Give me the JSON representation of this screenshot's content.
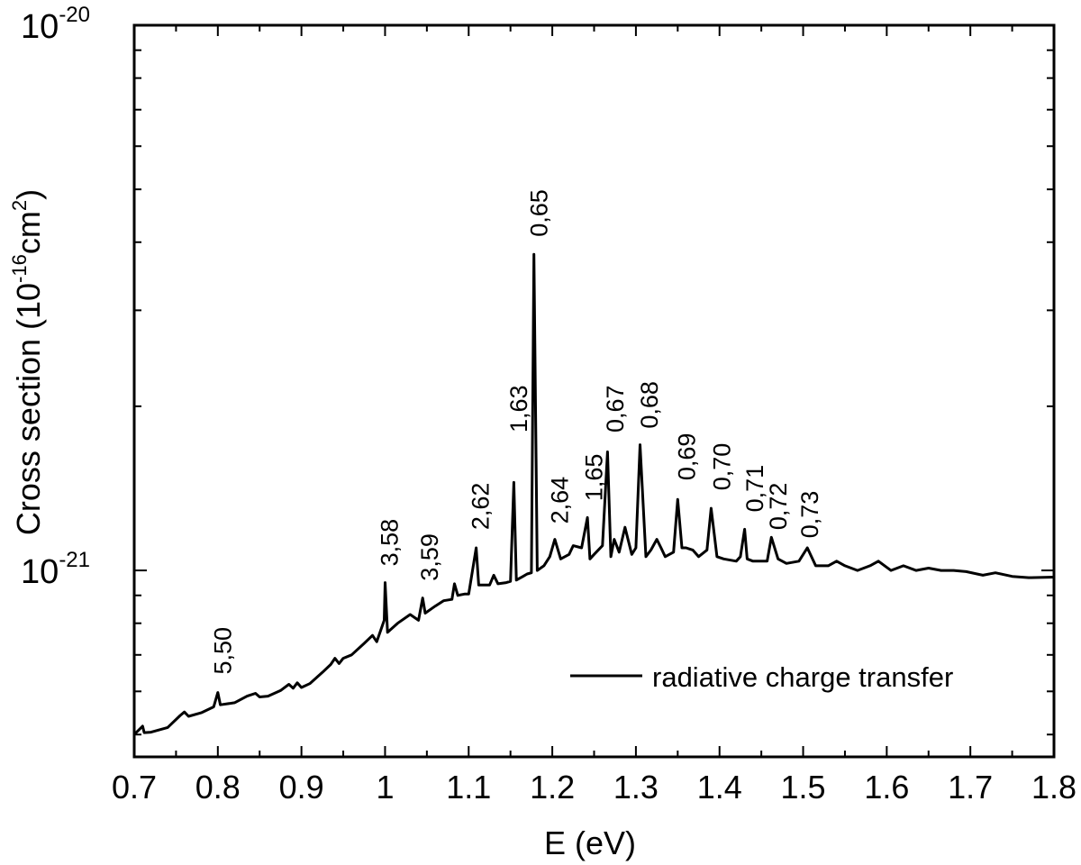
{
  "chart_data": {
    "type": "line",
    "xlabel": "E (eV)",
    "ylabel": {
      "prefix": "Cross section (10",
      "exp1": "-16",
      "mid": "cm",
      "exp2": "2",
      "suffix": ")"
    },
    "xlim": [
      0.7,
      1.8
    ],
    "ylim": [
      4.55e-22,
      1e-20
    ],
    "yscale": "log",
    "x_ticks": [
      {
        "value": 0.7,
        "label": "0.7"
      },
      {
        "value": 0.8,
        "label": "0.8"
      },
      {
        "value": 0.9,
        "label": "0.9"
      },
      {
        "value": 1.0,
        "label": "1"
      },
      {
        "value": 1.1,
        "label": "1.1"
      },
      {
        "value": 1.2,
        "label": "1.2"
      },
      {
        "value": 1.3,
        "label": "1.3"
      },
      {
        "value": 1.4,
        "label": "1.4"
      },
      {
        "value": 1.5,
        "label": "1.5"
      },
      {
        "value": 1.6,
        "label": "1.6"
      },
      {
        "value": 1.7,
        "label": "1.7"
      },
      {
        "value": 1.8,
        "label": "1.8"
      }
    ],
    "y_ticks": [
      {
        "value": 1e-21,
        "base": "10",
        "exp": "-21"
      },
      {
        "value": 1e-20,
        "base": "10",
        "exp": "-20"
      }
    ],
    "y_minor_ticks": [
      5e-22,
      6e-22,
      7e-22,
      8e-22,
      9e-22,
      2e-21,
      3e-21,
      4e-21,
      5e-21,
      6e-21,
      7e-21,
      8e-21,
      9e-21
    ],
    "grid": false,
    "legend": {
      "position": "bottom-right",
      "entries": [
        "radiative charge transfer"
      ]
    },
    "series": [
      {
        "name": "radiative charge transfer",
        "color": "#000000",
        "x": [
          0.7,
          0.71,
          0.712,
          0.72,
          0.74,
          0.755,
          0.76,
          0.765,
          0.78,
          0.795,
          0.8,
          0.803,
          0.82,
          0.835,
          0.845,
          0.85,
          0.86,
          0.875,
          0.885,
          0.89,
          0.895,
          0.9,
          0.91,
          0.925,
          0.935,
          0.94,
          0.945,
          0.95,
          0.96,
          0.975,
          0.985,
          0.99,
          0.999,
          1.0,
          1.003,
          1.015,
          1.03,
          1.04,
          1.045,
          1.048,
          1.06,
          1.07,
          1.08,
          1.083,
          1.087,
          1.095,
          1.1,
          1.109,
          1.112,
          1.125,
          1.13,
          1.135,
          1.145,
          1.15,
          1.154,
          1.157,
          1.165,
          1.17,
          1.175,
          1.178,
          1.182,
          1.19,
          1.197,
          1.203,
          1.21,
          1.22,
          1.225,
          1.235,
          1.242,
          1.245,
          1.25,
          1.26,
          1.266,
          1.27,
          1.274,
          1.28,
          1.287,
          1.295,
          1.3,
          1.305,
          1.312,
          1.318,
          1.325,
          1.33,
          1.335,
          1.345,
          1.35,
          1.355,
          1.36,
          1.368,
          1.375,
          1.385,
          1.39,
          1.397,
          1.405,
          1.42,
          1.425,
          1.43,
          1.433,
          1.44,
          1.45,
          1.457,
          1.462,
          1.47,
          1.48,
          1.495,
          1.505,
          1.515,
          1.53,
          1.54,
          1.55,
          1.565,
          1.58,
          1.59,
          1.605,
          1.62,
          1.635,
          1.65,
          1.665,
          1.68,
          1.695,
          1.715,
          1.73,
          1.75,
          1.77,
          1.8
        ],
        "y": [
          5e-22,
          5.18e-22,
          5.04e-22,
          5.05e-22,
          5.15e-22,
          5.42e-22,
          5.5e-22,
          5.4e-22,
          5.48e-22,
          5.62e-22,
          5.97e-22,
          5.67e-22,
          5.72e-22,
          5.88e-22,
          5.95e-22,
          5.86e-22,
          5.88e-22,
          6.02e-22,
          6.18e-22,
          6.08e-22,
          6.22e-22,
          6.1e-22,
          6.2e-22,
          6.5e-22,
          6.72e-22,
          6.9e-22,
          6.75e-22,
          6.9e-22,
          7e-22,
          7.35e-22,
          7.6e-22,
          7.4e-22,
          8.1e-22,
          9.5e-22,
          7.7e-22,
          8e-22,
          8.3e-22,
          8.1e-22,
          8.9e-22,
          8.35e-22,
          8.6e-22,
          8.8e-22,
          8.85e-22,
          9.45e-22,
          9e-22,
          9.05e-22,
          9.05e-22,
          1.1e-21,
          9.4e-22,
          9.4e-22,
          9.8e-22,
          9.45e-22,
          9.5e-22,
          9.55e-22,
          1.45e-21,
          9.6e-22,
          9.75e-22,
          9.85e-22,
          9.9e-22,
          3.8e-21,
          1e-21,
          1.02e-21,
          1.06e-21,
          1.14e-21,
          1.05e-21,
          1.07e-21,
          1.11e-21,
          1.1e-21,
          1.25e-21,
          1.05e-21,
          1.07e-21,
          1.11e-21,
          1.65e-21,
          1.06e-21,
          1.14e-21,
          1.08e-21,
          1.2e-21,
          1.07e-21,
          1.1e-21,
          1.7e-21,
          1.06e-21,
          1.09e-21,
          1.14e-21,
          1.1e-21,
          1.06e-21,
          1.08e-21,
          1.35e-21,
          1.1e-21,
          1.1e-21,
          1.09e-21,
          1.06e-21,
          1.09e-21,
          1.3e-21,
          1.06e-21,
          1.05e-21,
          1.04e-21,
          1.06e-21,
          1.19e-21,
          1.05e-21,
          1.04e-21,
          1.04e-21,
          1.04e-21,
          1.15e-21,
          1.05e-21,
          1.03e-21,
          1.04e-21,
          1.1e-21,
          1.02e-21,
          1.02e-21,
          1.04e-21,
          1.02e-21,
          1e-21,
          1.02e-21,
          1.04e-21,
          1e-21,
          1.02e-21,
          1e-21,
          1.01e-21,
          1e-21,
          1e-21,
          9.95e-22,
          9.8e-22,
          9.9e-22,
          9.75e-22,
          9.7e-22,
          9.72e-22
        ]
      }
    ],
    "annotations": [
      {
        "text": "5,50",
        "x": 0.803,
        "y": 6.3e-22
      },
      {
        "text": "3,58",
        "x": 1.002,
        "y": 9.95e-22
      },
      {
        "text": "3,59",
        "x": 1.05,
        "y": 9.35e-22
      },
      {
        "text": "2,62",
        "x": 1.111,
        "y": 1.16e-21
      },
      {
        "text": "1,63",
        "x": 1.157,
        "y": 1.75e-21
      },
      {
        "text": "0,65",
        "x": 1.181,
        "y": 4e-21
      },
      {
        "text": "2,64",
        "x": 1.206,
        "y": 1.19e-21
      },
      {
        "text": "1,65",
        "x": 1.247,
        "y": 1.31e-21
      },
      {
        "text": "0,67",
        "x": 1.272,
        "y": 1.75e-21
      },
      {
        "text": "0,68",
        "x": 1.313,
        "y": 1.78e-21
      },
      {
        "text": "0,69",
        "x": 1.358,
        "y": 1.43e-21
      },
      {
        "text": "0,70",
        "x": 1.4,
        "y": 1.37e-21
      },
      {
        "text": "0,71",
        "x": 1.439,
        "y": 1.25e-21
      },
      {
        "text": "0,72",
        "x": 1.467,
        "y": 1.16e-21
      },
      {
        "text": "0,73",
        "x": 1.505,
        "y": 1.12e-21
      }
    ]
  }
}
